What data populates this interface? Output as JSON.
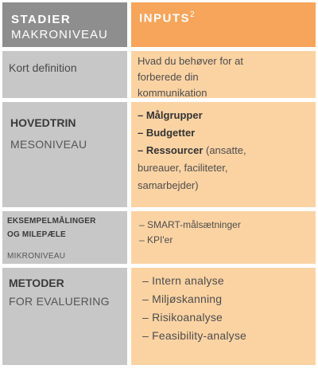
{
  "header": {
    "left_title": "STADIER",
    "left_sub": "MAKRONIVEAU",
    "right_title": "INPUTS",
    "right_sup": "2"
  },
  "rows": [
    {
      "left": "Kort definition",
      "right_lines": [
        "Hvad du behøver for at",
        "forberede din",
        "kommunikation"
      ]
    },
    {
      "left_bold": "HOVEDTRIN",
      "left_sub": "MESONIVEAU",
      "items": [
        {
          "bold": "– Målgrupper",
          "rest": ""
        },
        {
          "bold": "– Budgetter",
          "rest": ""
        },
        {
          "bold": "– Ressourcer",
          "rest": " (ansatte,"
        }
      ],
      "extra_lines": [
        "bureauer, faciliteter,",
        "samarbejder)"
      ]
    },
    {
      "left_bold_1": "EKSEMPELMÅLINGER",
      "left_bold_2": "OG MILEPÆLE",
      "left_sub": "MIKRONIVEAU",
      "items": [
        "– SMART-målsætninger",
        "– KPI'er"
      ]
    },
    {
      "left_bold": "METODER",
      "left_sub": "FOR EVALUERING",
      "items": [
        "– Intern analyse",
        "– Miljøskanning",
        "– Risikoanalyse",
        "– Feasibility-analyse"
      ]
    }
  ]
}
